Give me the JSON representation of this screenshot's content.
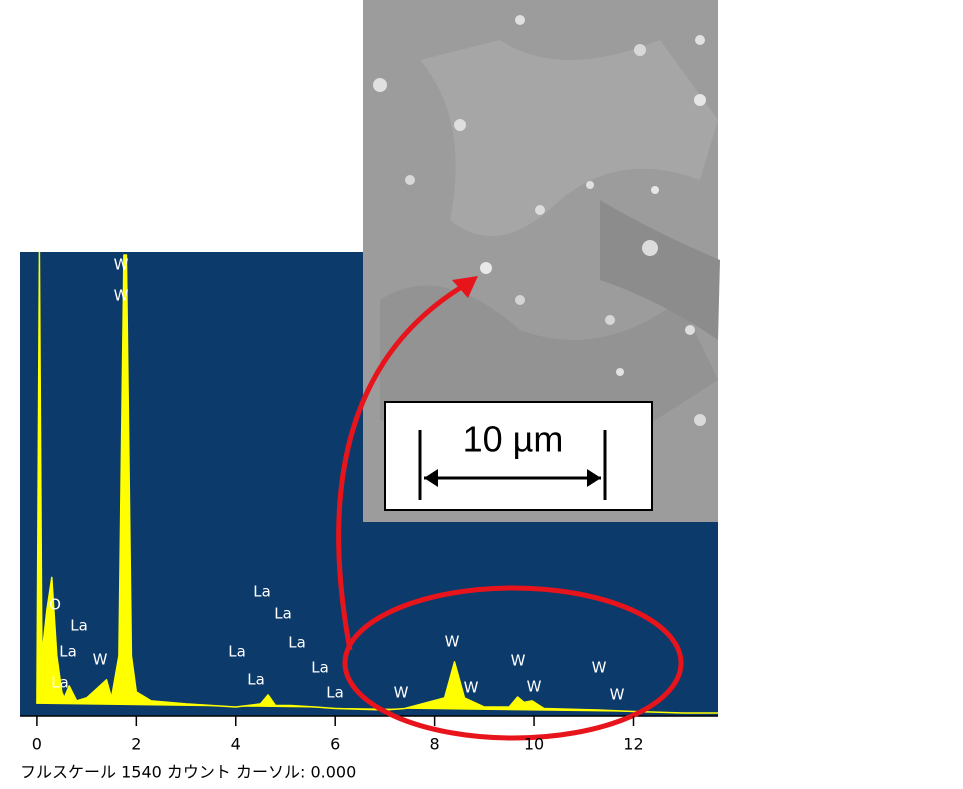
{
  "chart_data": {
    "type": "line",
    "x": [
      0,
      0.05,
      0.1,
      0.2,
      0.3,
      0.4,
      0.5,
      0.55,
      0.65,
      0.8,
      1.0,
      1.2,
      1.4,
      1.5,
      1.65,
      1.75,
      1.8,
      1.9,
      2.0,
      2.3,
      3.0,
      4.0,
      4.5,
      4.65,
      4.8,
      5.1,
      5.6,
      6.0,
      7.0,
      7.4,
      8.2,
      8.4,
      8.6,
      9.0,
      9.5,
      9.67,
      9.8,
      9.96,
      10.2,
      11.3,
      12.0,
      13.0,
      13.7
    ],
    "values": [
      40,
      1540,
      200,
      350,
      460,
      200,
      80,
      60,
      100,
      50,
      60,
      90,
      120,
      60,
      200,
      1530,
      1530,
      200,
      80,
      50,
      40,
      30,
      40,
      70,
      35,
      35,
      30,
      25,
      20,
      25,
      60,
      180,
      60,
      30,
      30,
      63,
      45,
      50,
      25,
      20,
      15,
      10,
      10
    ],
    "color": "#ffff00",
    "background": "#0b3a6b",
    "xlim": [
      -0.34,
      13.7
    ],
    "ylim": [
      0,
      1540
    ],
    "xticks": [
      0,
      2,
      4,
      6,
      8,
      10,
      12
    ],
    "annotations": [
      "W",
      "W",
      "O",
      "La",
      "La",
      "La",
      "W",
      "La",
      "La",
      "La",
      "La",
      "La",
      "La",
      "La",
      "W",
      "W",
      "W",
      "W",
      "W",
      "W",
      "W"
    ],
    "note": "フルスケール 1540 カウント カーソル: 0.000",
    "scale_bar": "10 µm"
  }
}
